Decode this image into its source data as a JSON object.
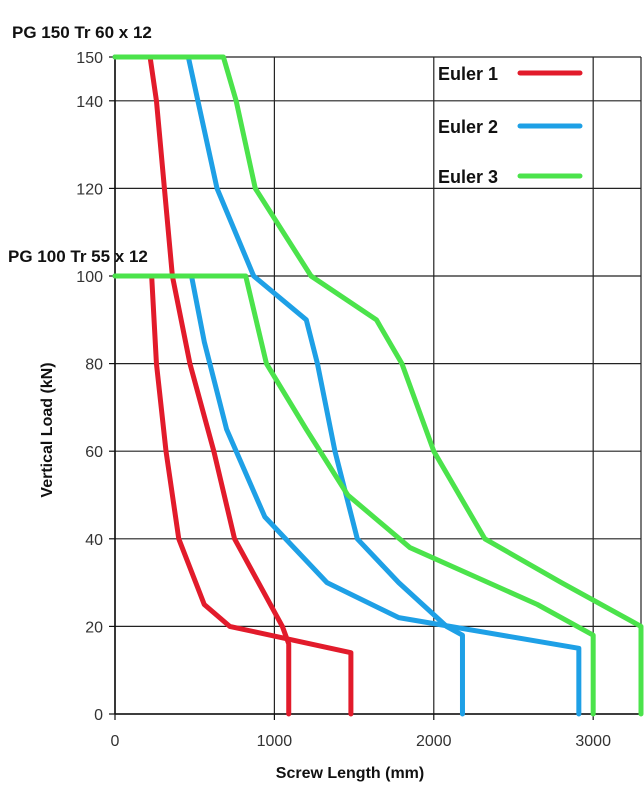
{
  "chart_data": {
    "type": "line",
    "title": "",
    "xlabel": "Screw Length (mm)",
    "ylabel": "Vertical Load (kN)",
    "xlim": [
      0,
      3300
    ],
    "ylim": [
      0,
      150
    ],
    "x_ticks": [
      0,
      1000,
      2000,
      3000
    ],
    "y_ticks": [
      0,
      20,
      40,
      60,
      80,
      100,
      120,
      140,
      150
    ],
    "grid": true,
    "legend_position": "top-right",
    "annotations": [
      {
        "text": "PG 150 Tr 60 x 12",
        "applies_to_load": 150
      },
      {
        "text": "PG 100 Tr 55 x 12",
        "applies_to_load": 100
      }
    ],
    "series": [
      {
        "name": "Euler 1",
        "color": "#e21b2b",
        "variant": "PG 150 Tr 60 x 12",
        "points": [
          [
            0,
            150
          ],
          [
            220,
            150
          ],
          [
            260,
            140
          ],
          [
            310,
            120
          ],
          [
            360,
            100
          ],
          [
            470,
            80
          ],
          [
            620,
            60
          ],
          [
            750,
            40
          ],
          [
            1050,
            20
          ],
          [
            1090,
            16
          ],
          [
            1090,
            0
          ]
        ]
      },
      {
        "name": "Euler 1",
        "color": "#e21b2b",
        "variant": "PG 100 Tr 55 x 12",
        "points": [
          [
            0,
            100
          ],
          [
            230,
            100
          ],
          [
            260,
            80
          ],
          [
            320,
            60
          ],
          [
            400,
            40
          ],
          [
            560,
            25
          ],
          [
            720,
            20
          ],
          [
            1480,
            14
          ],
          [
            1480,
            0
          ]
        ]
      },
      {
        "name": "Euler 2",
        "color": "#1ea0e6",
        "variant": "PG 150 Tr 60 x 12",
        "points": [
          [
            0,
            150
          ],
          [
            460,
            150
          ],
          [
            520,
            140
          ],
          [
            640,
            120
          ],
          [
            870,
            100
          ],
          [
            1200,
            90
          ],
          [
            1270,
            80
          ],
          [
            1380,
            60
          ],
          [
            1520,
            40
          ],
          [
            1780,
            30
          ],
          [
            2080,
            20
          ],
          [
            2180,
            18
          ],
          [
            2180,
            0
          ]
        ]
      },
      {
        "name": "Euler 2",
        "color": "#1ea0e6",
        "variant": "PG 100 Tr 55 x 12",
        "points": [
          [
            0,
            100
          ],
          [
            480,
            100
          ],
          [
            560,
            85
          ],
          [
            700,
            65
          ],
          [
            940,
            45
          ],
          [
            1330,
            30
          ],
          [
            1780,
            22
          ],
          [
            2910,
            15
          ],
          [
            2910,
            0
          ]
        ]
      },
      {
        "name": "Euler 3",
        "color": "#4be34b",
        "variant": "PG 150 Tr 60 x 12",
        "points": [
          [
            0,
            150
          ],
          [
            680,
            150
          ],
          [
            760,
            140
          ],
          [
            880,
            120
          ],
          [
            1230,
            100
          ],
          [
            1640,
            90
          ],
          [
            1800,
            80
          ],
          [
            2000,
            60
          ],
          [
            2320,
            40
          ],
          [
            2800,
            30
          ],
          [
            3300,
            20
          ],
          [
            3300,
            0
          ]
        ]
      },
      {
        "name": "Euler 3",
        "color": "#4be34b",
        "variant": "PG 100 Tr 55 x 12",
        "points": [
          [
            0,
            100
          ],
          [
            820,
            100
          ],
          [
            950,
            80
          ],
          [
            1200,
            65
          ],
          [
            1460,
            50
          ],
          [
            1850,
            38
          ],
          [
            2650,
            25
          ],
          [
            3000,
            18
          ],
          [
            3000,
            0
          ]
        ]
      }
    ],
    "legend": [
      {
        "label": "Euler 1",
        "color": "#e21b2b"
      },
      {
        "label": "Euler 2",
        "color": "#1ea0e6"
      },
      {
        "label": "Euler 3",
        "color": "#4be34b"
      }
    ]
  }
}
